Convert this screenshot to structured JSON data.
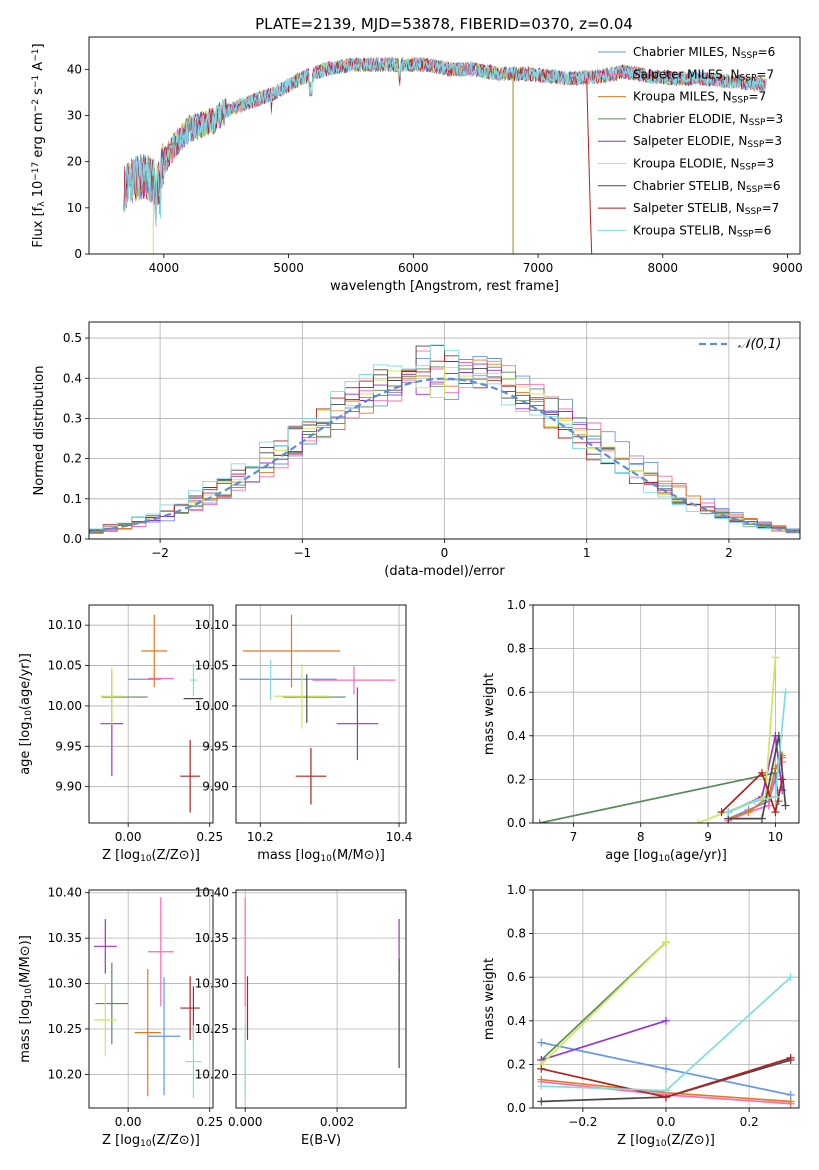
{
  "figure_title": "PLATE=2139, MJD=53878, FIBERID=0370, z=0.04",
  "colors": {
    "Chabrier MILES": "#6495ed",
    "Salpeter MILES": "#ff69b4",
    "Kroupa MILES": "#e07b20",
    "Chabrier ELODIE": "#5a8a5a",
    "Salpeter ELODIE": "#9932cc",
    "Kroupa ELODIE": "#cde85a",
    "Chabrier STELIB": "#4a4a4a",
    "Salpeter STELIB": "#b22222",
    "Kroupa STELIB": "#7fdde0"
  },
  "chart_data": [
    {
      "id": "spectrum",
      "type": "line",
      "title": "",
      "xlabel": "wavelength [Angstrom, rest frame]",
      "ylabel": "Flux [f_λ 10^-17 erg cm^-2 s^-1 A^-1]",
      "xlim": [
        3400,
        9100
      ],
      "ylim": [
        0,
        47
      ],
      "xticks": [
        4000,
        5000,
        6000,
        7000,
        8000,
        9000
      ],
      "yticks": [
        0,
        10,
        20,
        30,
        40
      ],
      "legend_position": "upper-right",
      "legend": [
        {
          "name": "Chabrier MILES",
          "sub": "SSP",
          "n": "6"
        },
        {
          "name": "Salpeter MILES",
          "sub": "SSP",
          "n": "7"
        },
        {
          "name": "Kroupa MILES",
          "sub": "SSP",
          "n": "7"
        },
        {
          "name": "Chabrier ELODIE",
          "sub": "SSP",
          "n": "3"
        },
        {
          "name": "Salpeter ELODIE",
          "sub": "SSP",
          "n": "3"
        },
        {
          "name": "Kroupa ELODIE",
          "sub": "SSP",
          "n": "3"
        },
        {
          "name": "Chabrier STELIB",
          "sub": "SSP",
          "n": "6"
        },
        {
          "name": "Salpeter STELIB",
          "sub": "SSP",
          "n": "7"
        },
        {
          "name": "Kroupa STELIB",
          "sub": "SSP",
          "n": "6"
        }
      ],
      "envelope": {
        "x": [
          3680,
          3750,
          3850,
          3950,
          4000,
          4100,
          4200,
          4300,
          4400,
          4500,
          4700,
          4900,
          5100,
          5300,
          5500,
          5700,
          5900,
          6100,
          6300,
          6500,
          6700,
          6900,
          7100,
          7300,
          7500,
          7700,
          7900,
          8100,
          8300,
          8500,
          8700,
          8830
        ],
        "y": [
          14,
          16,
          17,
          15,
          20,
          24,
          27,
          28,
          29,
          31,
          33,
          35,
          38,
          40,
          41,
          41,
          41,
          41,
          40,
          40,
          39,
          39,
          38.5,
          38,
          38.5,
          39.5,
          38.5,
          38,
          38,
          37.5,
          37,
          36.5
        ]
      }
    },
    {
      "id": "residuals",
      "type": "histogram",
      "xlabel": "(data-model)/error",
      "ylabel": "Normed distribution",
      "xlim": [
        -2.5,
        2.5
      ],
      "ylim": [
        0,
        0.54
      ],
      "xticks": [
        -2,
        -1,
        0,
        1,
        2
      ],
      "yticks": [
        0.0,
        0.1,
        0.2,
        0.3,
        0.4,
        0.5
      ],
      "grid": true,
      "legend_position": "upper-right",
      "reference_curve": {
        "name": "𝒩(0,1)",
        "mean": 0,
        "sigma": 1,
        "color": "#5b8fd6",
        "style": "dashed"
      },
      "bin_width": 0.1
    },
    {
      "id": "age-vs-Z",
      "type": "errorbar",
      "xlabel": "Z [log10(Z/Z⊙)]",
      "ylabel": "age [log10(age/yr)]",
      "xlim": [
        -0.12,
        0.26
      ],
      "ylim": [
        9.855,
        10.125
      ],
      "xticks": [
        0.0,
        0.25
      ],
      "yticks": [
        9.9,
        9.95,
        10.0,
        10.05,
        10.1
      ],
      "grid": true,
      "points": [
        {
          "series": "Chabrier MILES",
          "x": 0.05,
          "xerr": 0.05,
          "y": 10.033,
          "yerr": 0.0
        },
        {
          "series": "Salpeter MILES",
          "x": 0.1,
          "xerr": 0.04,
          "y": 10.034,
          "yerr": 0.0
        },
        {
          "series": "Kroupa MILES",
          "x": 0.08,
          "xerr": 0.04,
          "y": 10.068,
          "yerr": 0.045
        },
        {
          "series": "Chabrier ELODIE",
          "x": -0.01,
          "xerr": 0.07,
          "y": 10.011,
          "yerr": 0.0
        },
        {
          "series": "Salpeter ELODIE",
          "x": -0.05,
          "xerr": 0.035,
          "y": 9.978,
          "yerr": 0.065
        },
        {
          "series": "Kroupa ELODIE",
          "x": -0.05,
          "xerr": 0.035,
          "y": 10.012,
          "yerr": 0.035
        },
        {
          "series": "Chabrier STELIB",
          "x": 0.2,
          "xerr": 0.03,
          "y": 10.009,
          "yerr": 0.0
        },
        {
          "series": "Salpeter STELIB",
          "x": 0.19,
          "xerr": 0.03,
          "y": 9.913,
          "yerr": 0.045
        },
        {
          "series": "Kroupa STELIB",
          "x": 0.2,
          "xerr": 0.01,
          "y": 10.032,
          "yerr": 0.02
        }
      ]
    },
    {
      "id": "age-vs-mass",
      "type": "errorbar",
      "xlabel": "mass [log10(M/M⊙)]",
      "ylabel": "",
      "xlim": [
        10.165,
        10.41
      ],
      "ylim": [
        9.855,
        10.125
      ],
      "xticks": [
        10.2,
        10.4
      ],
      "yticks": [
        9.9,
        9.95,
        10.0,
        10.05,
        10.1
      ],
      "grid": true,
      "points": [
        {
          "series": "Chabrier MILES",
          "x": 10.24,
          "xerr": 0.07,
          "y": 10.033,
          "yerr": 0.0
        },
        {
          "series": "Salpeter MILES",
          "x": 10.335,
          "xerr": 0.06,
          "y": 10.032,
          "yerr": 0.018
        },
        {
          "series": "Kroupa MILES",
          "x": 10.245,
          "xerr": 0.07,
          "y": 10.068,
          "yerr": 0.045
        },
        {
          "series": "Chabrier ELODIE",
          "x": 10.278,
          "xerr": 0.045,
          "y": 10.011,
          "yerr": 0.0
        },
        {
          "series": "Salpeter ELODIE",
          "x": 10.34,
          "xerr": 0.03,
          "y": 9.978,
          "yerr": 0.045
        },
        {
          "series": "Kroupa ELODIE",
          "x": 10.26,
          "xerr": 0.04,
          "y": 10.012,
          "yerr": 0.04
        },
        {
          "series": "Chabrier STELIB",
          "x": 10.267,
          "xerr": 0.0,
          "y": 10.009,
          "yerr": 0.03
        },
        {
          "series": "Salpeter STELIB",
          "x": 10.273,
          "xerr": 0.022,
          "y": 9.913,
          "yerr": 0.035
        },
        {
          "series": "Kroupa STELIB",
          "x": 10.215,
          "xerr": 0.0,
          "y": 10.032,
          "yerr": 0.025
        }
      ]
    },
    {
      "id": "weight-vs-age",
      "type": "line",
      "xlabel": "age [log10(age/yr)]",
      "ylabel": "mass weight",
      "xlim": [
        6.4,
        10.35
      ],
      "ylim": [
        0,
        1.0
      ],
      "xticks": [
        7,
        8,
        9,
        10
      ],
      "yticks": [
        0.0,
        0.2,
        0.4,
        0.6,
        0.8,
        1.0
      ],
      "grid": true,
      "series": [
        {
          "name": "Chabrier MILES",
          "x": [
            9.3,
            9.6,
            9.9,
            10.0,
            10.1
          ],
          "y": [
            0.02,
            0.06,
            0.1,
            0.2,
            0.3
          ]
        },
        {
          "name": "Salpeter MILES",
          "x": [
            9.3,
            9.6,
            9.9,
            10.0,
            10.1
          ],
          "y": [
            0.01,
            0.05,
            0.08,
            0.25,
            0.28
          ]
        },
        {
          "name": "Kroupa MILES",
          "x": [
            9.3,
            9.6,
            9.9,
            10.0,
            10.1
          ],
          "y": [
            0.02,
            0.05,
            0.12,
            0.25,
            0.31
          ]
        },
        {
          "name": "Chabrier ELODIE",
          "x": [
            6.5,
            10.0,
            10.05
          ],
          "y": [
            0.0,
            0.23,
            0.1
          ]
        },
        {
          "name": "Salpeter ELODIE",
          "x": [
            9.3,
            9.8,
            10.0,
            10.1
          ],
          "y": [
            0.05,
            0.12,
            0.4,
            0.15
          ]
        },
        {
          "name": "Kroupa ELODIE",
          "x": [
            8.85,
            9.85,
            10.0
          ],
          "y": [
            0.0,
            0.12,
            0.76
          ]
        },
        {
          "name": "Chabrier STELIB",
          "x": [
            9.3,
            9.8,
            10.05,
            10.15
          ],
          "y": [
            0.02,
            0.02,
            0.4,
            0.08
          ]
        },
        {
          "name": "Salpeter STELIB",
          "x": [
            9.2,
            9.8,
            10.0,
            10.1
          ],
          "y": [
            0.05,
            0.23,
            0.05,
            0.2
          ]
        },
        {
          "name": "Kroupa STELIB",
          "x": [
            9.3,
            9.7,
            10.0,
            10.15
          ],
          "y": [
            0.05,
            0.1,
            0.12,
            0.6
          ]
        }
      ]
    },
    {
      "id": "mass-vs-Z",
      "type": "errorbar",
      "xlabel": "Z [log10(Z/Z⊙)]",
      "ylabel": "mass [log10(M/M⊙)]",
      "xlim": [
        -0.12,
        0.26
      ],
      "ylim": [
        10.163,
        10.403
      ],
      "xticks": [
        0.0,
        0.25
      ],
      "yticks": [
        10.2,
        10.25,
        10.3,
        10.35,
        10.4
      ],
      "grid": true,
      "points": [
        {
          "series": "Chabrier MILES",
          "x": 0.11,
          "xerr": 0.05,
          "y": 10.242,
          "yerr": 0.065
        },
        {
          "series": "Salpeter MILES",
          "x": 0.1,
          "xerr": 0.04,
          "y": 10.335,
          "yerr": 0.06
        },
        {
          "series": "Kroupa MILES",
          "x": 0.06,
          "xerr": 0.04,
          "y": 10.246,
          "yerr": 0.07
        },
        {
          "series": "Chabrier ELODIE",
          "x": -0.05,
          "xerr": 0.05,
          "y": 10.278,
          "yerr": 0.045
        },
        {
          "series": "Salpeter ELODIE",
          "x": -0.07,
          "xerr": 0.035,
          "y": 10.341,
          "yerr": 0.03
        },
        {
          "series": "Kroupa ELODIE",
          "x": -0.07,
          "xerr": 0.035,
          "y": 10.26,
          "yerr": 0.04
        },
        {
          "series": "Chabrier STELIB",
          "x": 0.2,
          "xerr": 0.0,
          "y": 10.267,
          "yerr": 0.03
        },
        {
          "series": "Salpeter STELIB",
          "x": 0.19,
          "xerr": 0.03,
          "y": 10.273,
          "yerr": 0.035
        },
        {
          "series": "Kroupa STELIB",
          "x": 0.2,
          "xerr": 0.025,
          "y": 10.214,
          "yerr": 0.04
        }
      ]
    },
    {
      "id": "mass-vs-ebv",
      "type": "errorbar",
      "xlabel": "E(B-V)",
      "ylabel": "",
      "xlim": [
        -0.0002,
        0.0035
      ],
      "ylim": [
        10.163,
        10.403
      ],
      "xticks": [
        0.0,
        0.002
      ],
      "xtick_labels": [
        "0.000",
        "0.002"
      ],
      "yticks": [
        10.2,
        10.25,
        10.3,
        10.35,
        10.4
      ],
      "grid": true,
      "points": [
        {
          "series": "Salpeter MILES",
          "x": 0.0,
          "xerr": 0.0,
          "y": 10.335,
          "yerr": 0.06
        },
        {
          "series": "Salpeter STELIB",
          "x": 5e-05,
          "xerr": 0.0,
          "y": 10.273,
          "yerr": 0.035
        },
        {
          "series": "Kroupa STELIB",
          "x": 0.0,
          "xerr": 0.0,
          "y": 10.214,
          "yerr": 0.04
        },
        {
          "series": "Salpeter ELODIE",
          "x": 0.00335,
          "xerr": 0.0,
          "y": 10.341,
          "yerr": 0.03
        },
        {
          "series": "Chabrier STELIB",
          "x": 0.00335,
          "xerr": 0.0,
          "y": 10.267,
          "yerr": 0.06
        }
      ]
    },
    {
      "id": "weight-vs-Z",
      "type": "line",
      "xlabel": "Z [log10(Z/Z⊙)]",
      "ylabel": "mass weight",
      "xlim": [
        -0.32,
        0.32
      ],
      "ylim": [
        0,
        1.0
      ],
      "xticks": [
        -0.2,
        0.0,
        0.2
      ],
      "yticks": [
        0.0,
        0.2,
        0.4,
        0.6,
        0.8,
        1.0
      ],
      "grid": true,
      "series": [
        {
          "name": "Chabrier MILES",
          "x": [
            -0.3,
            0.0,
            0.3
          ],
          "y": [
            0.3,
            0.18,
            0.06
          ]
        },
        {
          "name": "Salpeter MILES",
          "x": [
            -0.3,
            0.0,
            0.3
          ],
          "y": [
            0.12,
            0.06,
            0.02
          ]
        },
        {
          "name": "Kroupa MILES",
          "x": [
            -0.3,
            0.0,
            0.3
          ],
          "y": [
            0.13,
            0.07,
            0.03
          ]
        },
        {
          "name": "Chabrier ELODIE",
          "x": [
            -0.3,
            0.0
          ],
          "y": [
            0.22,
            0.76
          ]
        },
        {
          "name": "Salpeter ELODIE",
          "x": [
            -0.3,
            0.0
          ],
          "y": [
            0.22,
            0.4
          ]
        },
        {
          "name": "Kroupa ELODIE",
          "x": [
            -0.3,
            0.0
          ],
          "y": [
            0.2,
            0.76
          ]
        },
        {
          "name": "Chabrier STELIB",
          "x": [
            -0.3,
            0.0,
            0.3
          ],
          "y": [
            0.03,
            0.05,
            0.22
          ]
        },
        {
          "name": "Salpeter STELIB",
          "x": [
            -0.3,
            0.0,
            0.3
          ],
          "y": [
            0.18,
            0.05,
            0.23
          ]
        },
        {
          "name": "Kroupa STELIB",
          "x": [
            -0.3,
            0.0,
            0.3
          ],
          "y": [
            0.1,
            0.08,
            0.6
          ]
        }
      ]
    }
  ]
}
